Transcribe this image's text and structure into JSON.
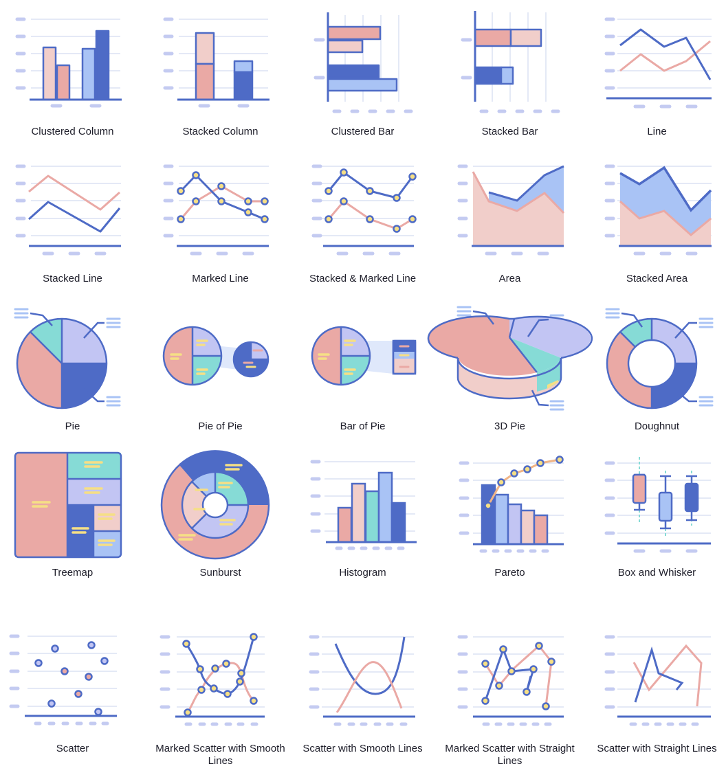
{
  "icons": [
    {
      "name": "clustered-column-icon",
      "label": "Clustered Column"
    },
    {
      "name": "stacked-column-icon",
      "label": "Stacked Column"
    },
    {
      "name": "clustered-bar-icon",
      "label": "Clustered Bar"
    },
    {
      "name": "stacked-bar-icon",
      "label": "Stacked Bar"
    },
    {
      "name": "line-icon",
      "label": "Line"
    },
    {
      "name": "stacked-line-icon",
      "label": "Stacked Line"
    },
    {
      "name": "marked-line-icon",
      "label": "Marked Line"
    },
    {
      "name": "stacked-marked-line-icon",
      "label": "Stacked & Marked Line"
    },
    {
      "name": "area-icon",
      "label": "Area"
    },
    {
      "name": "stacked-area-icon",
      "label": "Stacked Area"
    },
    {
      "name": "pie-icon",
      "label": "Pie"
    },
    {
      "name": "pie-of-pie-icon",
      "label": "Pie of Pie"
    },
    {
      "name": "bar-of-pie-icon",
      "label": "Bar of Pie"
    },
    {
      "name": "3d-pie-icon",
      "label": "3D Pie"
    },
    {
      "name": "doughnut-icon",
      "label": "Doughnut"
    },
    {
      "name": "treemap-icon",
      "label": "Treemap"
    },
    {
      "name": "sunburst-icon",
      "label": "Sunburst"
    },
    {
      "name": "histogram-icon",
      "label": "Histogram"
    },
    {
      "name": "pareto-icon",
      "label": "Pareto"
    },
    {
      "name": "box-and-whisker-icon",
      "label": "Box and Whisker"
    },
    {
      "name": "scatter-icon",
      "label": "Scatter"
    },
    {
      "name": "marked-scatter-smooth-lines-icon",
      "label": "Marked Scatter with Smooth Lines"
    },
    {
      "name": "scatter-smooth-lines-icon",
      "label": "Scatter with Smooth Lines"
    },
    {
      "name": "marked-scatter-straight-lines-icon",
      "label": "Marked Scatter with Straight Lines"
    },
    {
      "name": "scatter-straight-lines-icon",
      "label": "Scatter with Straight Lines"
    }
  ],
  "colors": {
    "navy": "#4e6bc6",
    "pink": "#eaa9a5",
    "lightpink": "#f1ceca",
    "lightblue": "#a9c3f5",
    "lavender": "#c2c5f3",
    "teal": "#86dbd6",
    "yellow": "#f6df85",
    "grid": "#e4e9f6",
    "dash": "#c4cbf1",
    "label": "#1e1e2a"
  }
}
